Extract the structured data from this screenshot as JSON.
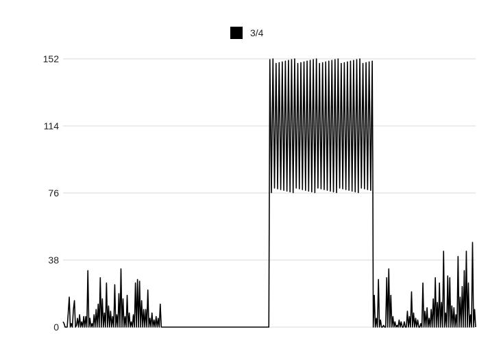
{
  "chart_data": {
    "type": "line",
    "title": "",
    "xlabel": "",
    "ylabel": "",
    "ylim": [
      0,
      152
    ],
    "y_ticks": [
      0,
      38,
      76,
      114,
      152
    ],
    "grid": "horizontal",
    "legend_placement": "top-center",
    "series": [
      {
        "name": "3/4",
        "color": "#000000",
        "segments": [
          {
            "x_range": [
              0,
              199
            ],
            "spikes": [
              [
                0,
                3
              ],
              [
                1,
                2
              ],
              [
                2,
                0
              ],
              [
                5,
                8
              ],
              [
                6,
                17
              ],
              [
                8,
                2
              ],
              [
                10,
                10
              ],
              [
                11,
                15
              ],
              [
                13,
                1
              ],
              [
                14,
                5
              ],
              [
                16,
                7
              ],
              [
                18,
                3
              ],
              [
                20,
                6
              ],
              [
                22,
                6
              ],
              [
                24,
                32
              ],
              [
                26,
                5
              ],
              [
                28,
                2
              ],
              [
                30,
                7
              ],
              [
                32,
                10
              ],
              [
                34,
                13
              ],
              [
                36,
                28
              ],
              [
                38,
                16
              ],
              [
                40,
                8
              ],
              [
                42,
                25
              ],
              [
                44,
                12
              ],
              [
                46,
                9
              ],
              [
                48,
                6
              ],
              [
                50,
                24
              ],
              [
                52,
                7
              ],
              [
                54,
                19
              ],
              [
                56,
                33
              ],
              [
                58,
                16
              ],
              [
                60,
                6
              ],
              [
                62,
                18
              ],
              [
                64,
                8
              ],
              [
                66,
                3
              ],
              [
                68,
                7
              ],
              [
                70,
                25
              ],
              [
                72,
                27
              ],
              [
                74,
                26
              ],
              [
                76,
                15
              ],
              [
                78,
                10
              ],
              [
                80,
                10
              ],
              [
                82,
                21
              ],
              [
                84,
                5
              ],
              [
                86,
                8
              ],
              [
                88,
                4
              ],
              [
                90,
                6
              ],
              [
                92,
                5
              ],
              [
                94,
                13
              ]
            ]
          },
          {
            "x_range": [
              200,
              299
            ],
            "band": [
              76,
              152
            ]
          },
          {
            "x_range": [
              300,
              399
            ],
            "spikes": [
              [
                301,
                18
              ],
              [
                303,
                5
              ],
              [
                305,
                27
              ],
              [
                307,
                4
              ],
              [
                310,
                1
              ],
              [
                313,
                28
              ],
              [
                315,
                33
              ],
              [
                317,
                18
              ],
              [
                319,
                6
              ],
              [
                321,
                3
              ],
              [
                323,
                1
              ],
              [
                325,
                4
              ],
              [
                327,
                3
              ],
              [
                330,
                3
              ],
              [
                333,
                9
              ],
              [
                335,
                6
              ],
              [
                337,
                20
              ],
              [
                339,
                8
              ],
              [
                341,
                5
              ],
              [
                343,
                4
              ],
              [
                346,
                2
              ],
              [
                348,
                25
              ],
              [
                350,
                9
              ],
              [
                352,
                11
              ],
              [
                354,
                5
              ],
              [
                356,
                10
              ],
              [
                358,
                16
              ],
              [
                360,
                28
              ],
              [
                362,
                14
              ],
              [
                364,
                25
              ],
              [
                366,
                14
              ],
              [
                368,
                43
              ],
              [
                370,
                8
              ],
              [
                372,
                29
              ],
              [
                374,
                28
              ],
              [
                376,
                12
              ],
              [
                378,
                11
              ],
              [
                380,
                7
              ],
              [
                382,
                40
              ],
              [
                384,
                17
              ],
              [
                386,
                23
              ],
              [
                388,
                32
              ],
              [
                390,
                43
              ],
              [
                392,
                25
              ],
              [
                394,
                7
              ],
              [
                396,
                48
              ],
              [
                398,
                10
              ]
            ]
          }
        ]
      }
    ]
  }
}
